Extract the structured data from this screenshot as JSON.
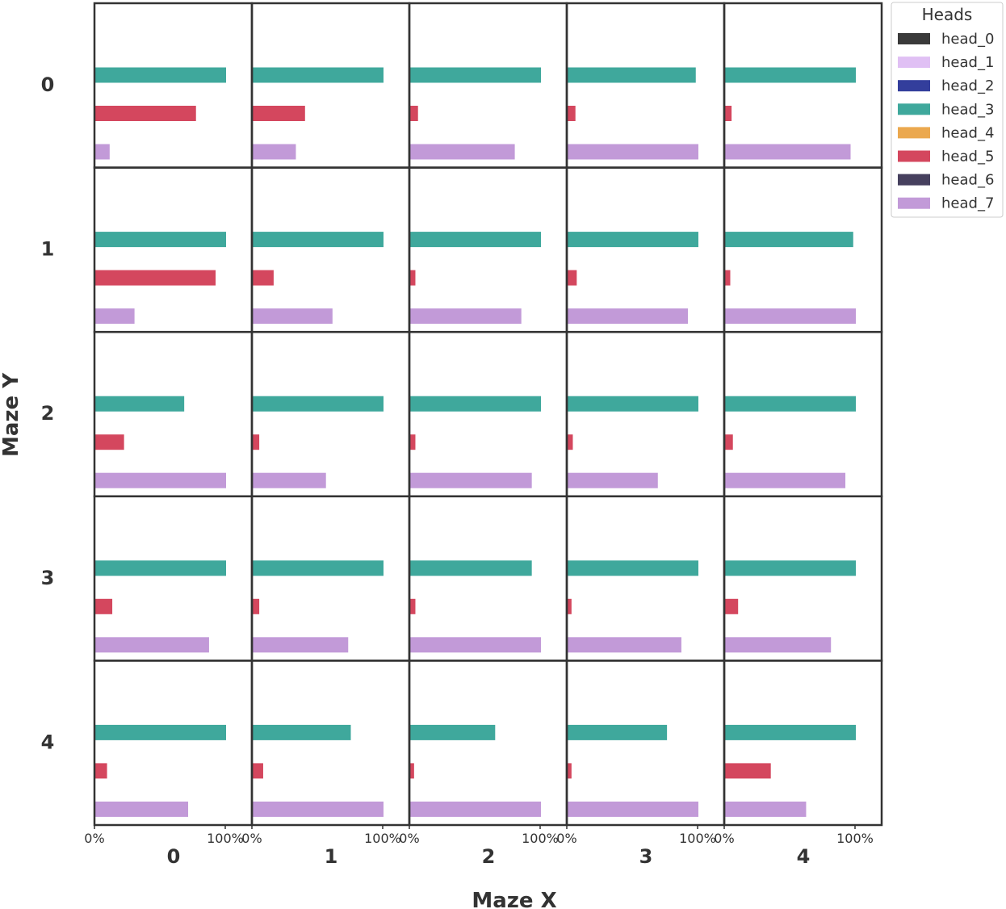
{
  "chart_data": {
    "type": "bar",
    "orientation": "horizontal",
    "layout": "small-multiples grid",
    "xlabel": "Maze X",
    "ylabel": "Maze Y",
    "row_labels": [
      "0",
      "1",
      "2",
      "3",
      "4"
    ],
    "col_labels": [
      "0",
      "1",
      "2",
      "3",
      "4"
    ],
    "x_ticks": [
      "0%",
      "100%"
    ],
    "xlim": [
      0,
      1.2
    ],
    "legend": {
      "title": "Heads",
      "placement": "outside top-right",
      "entries": [
        {
          "name": "head_0",
          "color": "#3a3a3a"
        },
        {
          "name": "head_1",
          "color": "#e0c0f4"
        },
        {
          "name": "head_2",
          "color": "#333e9c"
        },
        {
          "name": "head_3",
          "color": "#3fa89c"
        },
        {
          "name": "head_4",
          "color": "#eba84e"
        },
        {
          "name": "head_5",
          "color": "#d4475e"
        },
        {
          "name": "head_6",
          "color": "#46405e"
        },
        {
          "name": "head_7",
          "color": "#c29ad8"
        }
      ]
    },
    "displayed_series": [
      "head_3",
      "head_5",
      "head_7"
    ],
    "cells": [
      [
        {
          "head_3": 1.0,
          "head_5": 0.77,
          "head_7": 0.11
        },
        {
          "head_3": 1.0,
          "head_5": 0.4,
          "head_7": 0.33
        },
        {
          "head_3": 1.0,
          "head_5": 0.06,
          "head_7": 0.8
        },
        {
          "head_3": 0.98,
          "head_5": 0.06,
          "head_7": 1.0
        },
        {
          "head_3": 1.0,
          "head_5": 0.05,
          "head_7": 0.96
        }
      ],
      [
        {
          "head_3": 1.0,
          "head_5": 0.92,
          "head_7": 0.3
        },
        {
          "head_3": 1.0,
          "head_5": 0.16,
          "head_7": 0.61
        },
        {
          "head_3": 1.0,
          "head_5": 0.04,
          "head_7": 0.85
        },
        {
          "head_3": 1.0,
          "head_5": 0.07,
          "head_7": 0.92
        },
        {
          "head_3": 0.98,
          "head_5": 0.04,
          "head_7": 1.0
        }
      ],
      [
        {
          "head_3": 0.68,
          "head_5": 0.22,
          "head_7": 1.0
        },
        {
          "head_3": 1.0,
          "head_5": 0.05,
          "head_7": 0.56
        },
        {
          "head_3": 1.0,
          "head_5": 0.04,
          "head_7": 0.93
        },
        {
          "head_3": 1.0,
          "head_5": 0.04,
          "head_7": 0.69
        },
        {
          "head_3": 1.0,
          "head_5": 0.06,
          "head_7": 0.92
        }
      ],
      [
        {
          "head_3": 1.0,
          "head_5": 0.13,
          "head_7": 0.87
        },
        {
          "head_3": 1.0,
          "head_5": 0.05,
          "head_7": 0.73
        },
        {
          "head_3": 0.93,
          "head_5": 0.04,
          "head_7": 1.0
        },
        {
          "head_3": 1.0,
          "head_5": 0.03,
          "head_7": 0.87
        },
        {
          "head_3": 1.0,
          "head_5": 0.1,
          "head_7": 0.81
        }
      ],
      [
        {
          "head_3": 1.0,
          "head_5": 0.09,
          "head_7": 0.71
        },
        {
          "head_3": 0.75,
          "head_5": 0.08,
          "head_7": 1.0
        },
        {
          "head_3": 0.65,
          "head_5": 0.03,
          "head_7": 1.0
        },
        {
          "head_3": 0.76,
          "head_5": 0.03,
          "head_7": 1.0
        },
        {
          "head_3": 1.0,
          "head_5": 0.35,
          "head_7": 0.62
        }
      ]
    ]
  }
}
